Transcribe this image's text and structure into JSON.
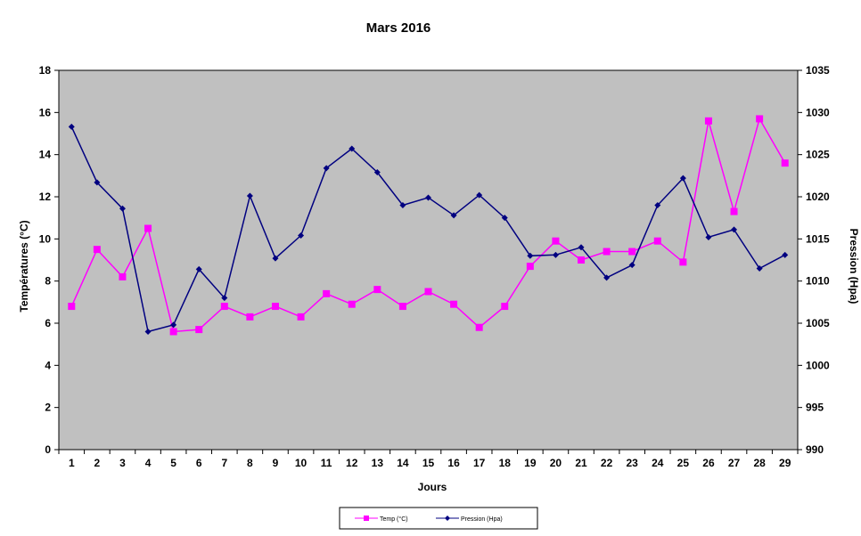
{
  "chart_data": {
    "type": "line",
    "title": "Mars 2016",
    "xlabel": "Jours",
    "ylabel_left": "Températures (°C)",
    "ylabel_right": "Pression (Hpa)",
    "ylim_left": [
      0,
      18
    ],
    "ylim_right": [
      990,
      1035
    ],
    "yticks_left": [
      0,
      2,
      4,
      6,
      8,
      10,
      12,
      14,
      16,
      18
    ],
    "yticks_right": [
      990,
      995,
      1000,
      1005,
      1010,
      1015,
      1020,
      1025,
      1030,
      1035
    ],
    "x": [
      1,
      2,
      3,
      4,
      5,
      6,
      7,
      8,
      9,
      10,
      11,
      12,
      13,
      14,
      15,
      16,
      17,
      18,
      19,
      20,
      21,
      22,
      23,
      24,
      25,
      26,
      27,
      28,
      29
    ],
    "grid": false,
    "plot_background": "#c0c0c0",
    "legend_position": "bottom",
    "series": [
      {
        "name": "Temp (°C)",
        "axis": "left",
        "color": "#ff00ff",
        "marker": "square",
        "values": [
          6.8,
          9.5,
          8.2,
          10.5,
          5.6,
          5.7,
          6.8,
          6.3,
          6.8,
          6.3,
          7.4,
          6.9,
          7.6,
          6.8,
          7.5,
          6.9,
          5.8,
          6.8,
          8.7,
          9.9,
          9.0,
          9.4,
          9.4,
          9.9,
          8.9,
          15.6,
          11.3,
          15.7,
          13.6
        ]
      },
      {
        "name": "Pression (Hpa)",
        "axis": "right",
        "color": "#000080",
        "marker": "diamond",
        "values": [
          1028.3,
          1021.7,
          1018.6,
          1004.0,
          1004.8,
          1011.4,
          1008.0,
          1020.1,
          1012.7,
          1015.4,
          1023.4,
          1025.7,
          1022.9,
          1019.0,
          1019.9,
          1017.8,
          1020.2,
          1017.5,
          1013.0,
          1013.1,
          1014.0,
          1010.4,
          1011.9,
          1019.0,
          1022.2,
          1015.2,
          1016.1,
          1011.5,
          1013.1
        ]
      }
    ]
  }
}
